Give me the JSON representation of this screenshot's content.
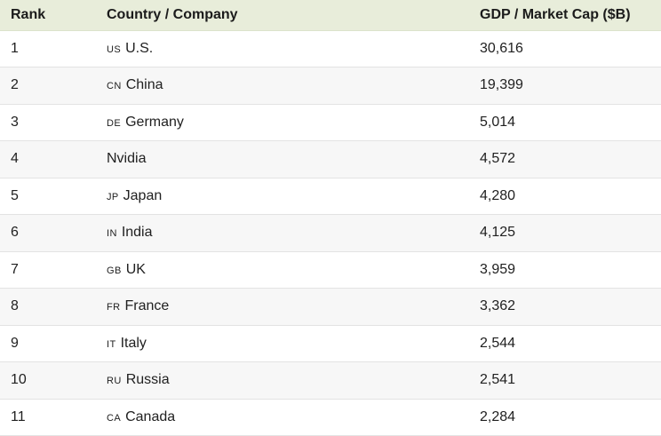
{
  "colors": {
    "header_bg": "#e8edda",
    "header_border": "#dce3cb",
    "row_alt_bg": "#f7f7f7",
    "row_border": "#e3e3e3",
    "text": "#212121"
  },
  "table": {
    "columns": [
      {
        "key": "rank",
        "label": "Rank"
      },
      {
        "key": "name",
        "label": "Country / Company"
      },
      {
        "key": "value",
        "label": "GDP / Market Cap ($B)"
      }
    ],
    "rows": [
      {
        "rank": "1",
        "code": "US",
        "name": "U.S.",
        "value": "30,616"
      },
      {
        "rank": "2",
        "code": "CN",
        "name": "China",
        "value": "19,399"
      },
      {
        "rank": "3",
        "code": "DE",
        "name": "Germany",
        "value": "5,014"
      },
      {
        "rank": "4",
        "code": "",
        "name": "Nvidia",
        "value": "4,572"
      },
      {
        "rank": "5",
        "code": "JP",
        "name": "Japan",
        "value": "4,280"
      },
      {
        "rank": "6",
        "code": "IN",
        "name": "India",
        "value": "4,125"
      },
      {
        "rank": "7",
        "code": "GB",
        "name": "UK",
        "value": "3,959"
      },
      {
        "rank": "8",
        "code": "FR",
        "name": "France",
        "value": "3,362"
      },
      {
        "rank": "9",
        "code": "IT",
        "name": "Italy",
        "value": "2,544"
      },
      {
        "rank": "10",
        "code": "RU",
        "name": "Russia",
        "value": "2,541"
      },
      {
        "rank": "11",
        "code": "CA",
        "name": "Canada",
        "value": "2,284"
      }
    ]
  }
}
